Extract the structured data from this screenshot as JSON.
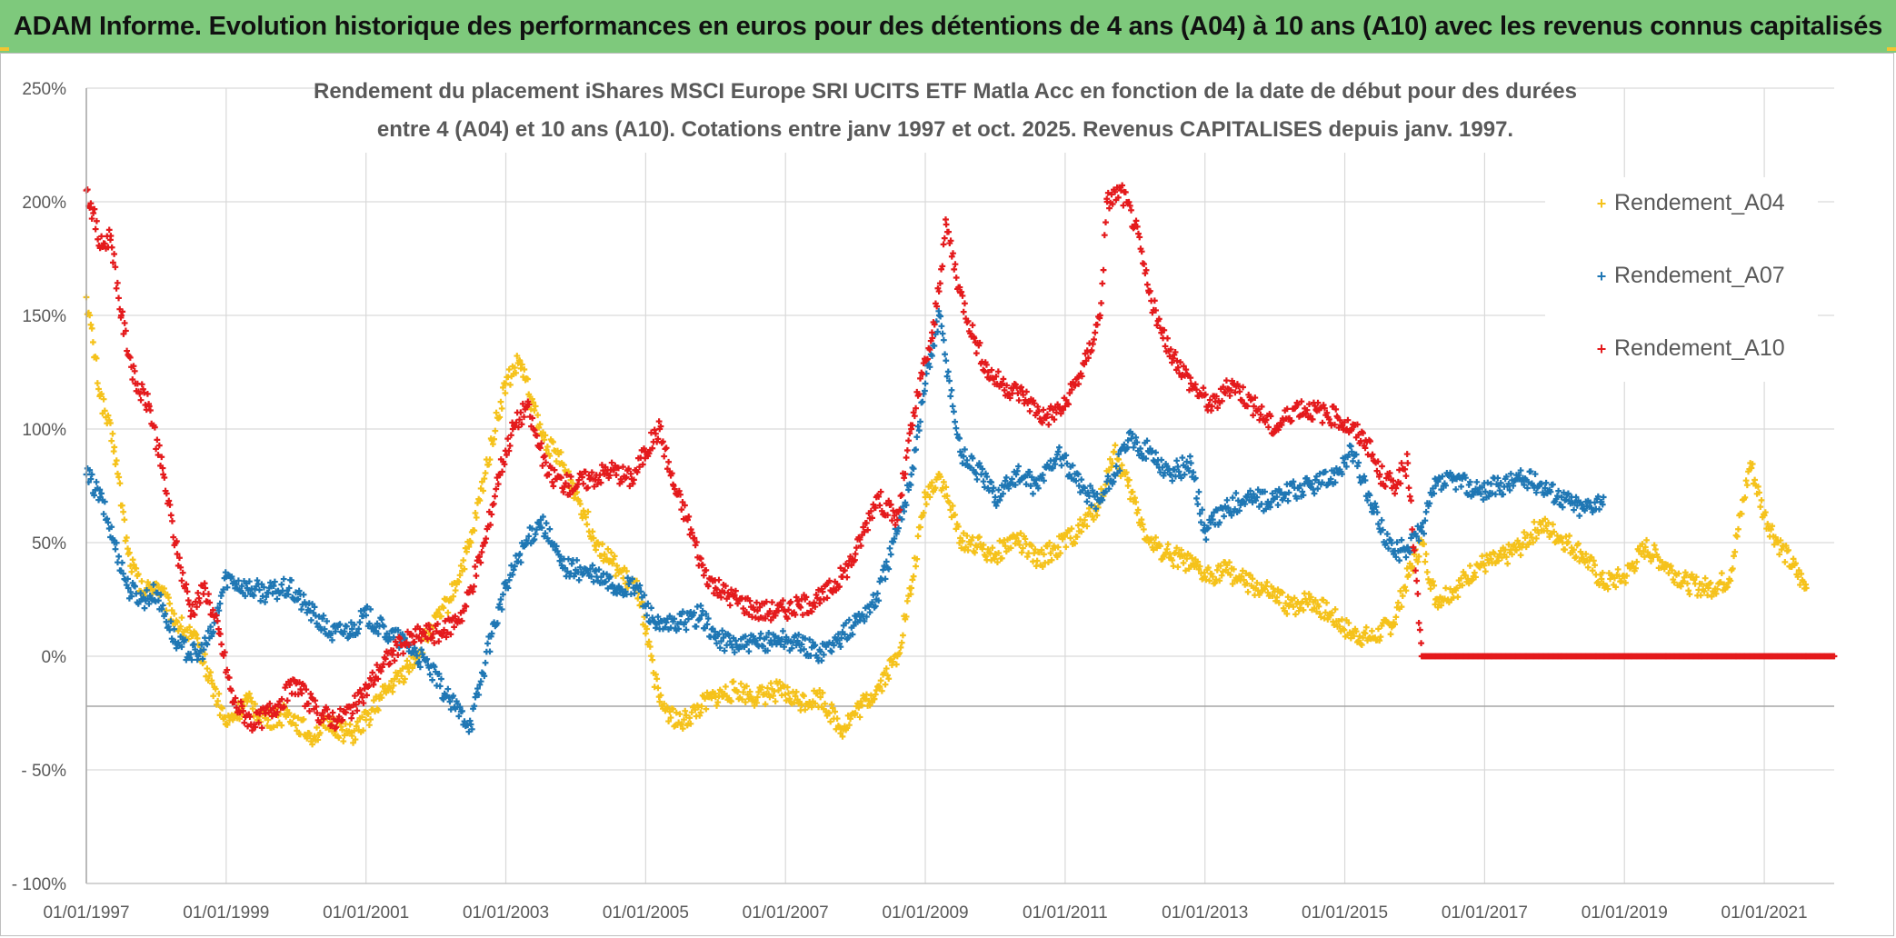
{
  "banner": {
    "title": "ADAM Informe. Evolution historique des performances en euros pour des détentions de 4 ans (A04) à 10 ans (A10) avec les revenus connus capitalisés"
  },
  "colors": {
    "banner_bg": "#7ec97c",
    "accent_corner": "#f2c531",
    "grid": "#d9d9d9",
    "text": "#595959"
  },
  "chart_data": {
    "type": "scatter",
    "title_lines": [
      "Rendement du placement iShares MSCI Europe SRI UCITS ETF Matla Acc en fonction de la date de début pour des durées",
      "entre 4 (A04) et 10 ans (A10). Cotations entre janv 1997 et oct. 2025. Revenus CAPITALISES depuis janv. 1997."
    ],
    "xlabel": "",
    "ylabel": "",
    "ylim": [
      -100,
      250
    ],
    "y_ticks": [
      -100,
      -50,
      0,
      50,
      100,
      150,
      200,
      250
    ],
    "y_tick_labels": [
      "- 100%",
      "- 50%",
      "0%",
      "50%",
      "100%",
      "150%",
      "200%",
      "250%"
    ],
    "xlim": [
      1997.0,
      2022.0
    ],
    "x_ticks": [
      1997,
      1999,
      2001,
      2003,
      2005,
      2007,
      2009,
      2011,
      2013,
      2015,
      2017,
      2019,
      2021
    ],
    "x_tick_labels": [
      "01/01/1997",
      "01/01/1999",
      "01/01/2001",
      "01/01/2003",
      "01/01/2005",
      "01/01/2007",
      "01/01/2009",
      "01/01/2011",
      "01/01/2013",
      "01/01/2015",
      "01/01/2017",
      "01/01/2019",
      "01/01/2021"
    ],
    "extra_hline": -22,
    "legend_position": "top-right",
    "series": [
      {
        "name": "Rendement_A04",
        "color": "#f5c21b",
        "x": [
          1997.0,
          1997.2,
          1997.4,
          1997.6,
          1997.8,
          1998.0,
          1998.3,
          1998.6,
          1998.8,
          1999.0,
          1999.3,
          1999.6,
          1999.9,
          2000.2,
          2000.5,
          2000.8,
          2001.0,
          2001.3,
          2001.6,
          2001.9,
          2002.2,
          2002.5,
          2002.8,
          2003.0,
          2003.2,
          2003.5,
          2003.8,
          2004.0,
          2004.3,
          2004.6,
          2004.9,
          2005.0,
          2005.2,
          2005.5,
          2005.8,
          2006.0,
          2006.3,
          2006.6,
          2006.9,
          2007.2,
          2007.5,
          2007.8,
          2008.0,
          2008.3,
          2008.6,
          2008.8,
          2009.0,
          2009.2,
          2009.5,
          2009.8,
          2010.0,
          2010.3,
          2010.6,
          2010.9,
          2011.2,
          2011.5,
          2011.7,
          2011.9,
          2012.2,
          2012.5,
          2012.8,
          2013.0,
          2013.3,
          2013.6,
          2013.9,
          2014.2,
          2014.5,
          2014.8,
          2015.1,
          2015.4,
          2015.7,
          2015.9,
          2016.1,
          2016.3,
          2016.6,
          2016.9,
          2017.2,
          2017.5,
          2017.8,
          2018.1,
          2018.4,
          2018.7,
          2019.0,
          2019.3,
          2019.6,
          2019.9,
          2020.2,
          2020.5,
          2020.8,
          2021.0,
          2021.2,
          2021.4,
          2021.6
        ],
        "y": [
          158,
          115,
          92,
          45,
          28,
          32,
          15,
          5,
          -12,
          -30,
          -20,
          -28,
          -25,
          -35,
          -30,
          -35,
          -28,
          -15,
          -5,
          10,
          25,
          50,
          95,
          120,
          130,
          98,
          85,
          72,
          50,
          38,
          28,
          10,
          -20,
          -30,
          -22,
          -18,
          -15,
          -18,
          -15,
          -20,
          -18,
          -32,
          -25,
          -15,
          0,
          30,
          70,
          80,
          52,
          48,
          45,
          52,
          42,
          48,
          55,
          68,
          90,
          75,
          50,
          45,
          40,
          35,
          38,
          32,
          28,
          22,
          25,
          18,
          10,
          8,
          15,
          35,
          50,
          25,
          30,
          40,
          42,
          48,
          58,
          52,
          45,
          32,
          35,
          48,
          40,
          32,
          30,
          34,
          85,
          62,
          50,
          40,
          30
        ]
      },
      {
        "name": "Rendement_A07",
        "color": "#1f77b4",
        "x": [
          1997.0,
          1997.2,
          1997.4,
          1997.6,
          1997.8,
          1998.0,
          1998.3,
          1998.6,
          1998.8,
          1999.0,
          1999.3,
          1999.6,
          1999.9,
          2000.2,
          2000.5,
          2000.8,
          2001.0,
          2001.3,
          2001.6,
          2001.9,
          2002.2,
          2002.5,
          2002.8,
          2003.0,
          2003.2,
          2003.5,
          2003.8,
          2004.0,
          2004.3,
          2004.6,
          2004.9,
          2005.0,
          2005.2,
          2005.5,
          2005.8,
          2006.0,
          2006.3,
          2006.6,
          2006.9,
          2007.2,
          2007.5,
          2007.8,
          2008.0,
          2008.3,
          2008.6,
          2008.8,
          2009.0,
          2009.2,
          2009.5,
          2009.8,
          2010.0,
          2010.3,
          2010.6,
          2010.9,
          2011.2,
          2011.5,
          2011.7,
          2011.9,
          2012.2,
          2012.5,
          2012.8,
          2013.0,
          2013.3,
          2013.6,
          2013.9,
          2014.2,
          2014.5,
          2014.8,
          2015.1,
          2015.4,
          2015.7,
          2015.9,
          2016.1,
          2016.3,
          2016.6,
          2016.9,
          2017.2,
          2017.5,
          2017.8,
          2018.1,
          2018.4,
          2018.7
        ],
        "y": [
          80,
          70,
          50,
          30,
          25,
          28,
          5,
          0,
          10,
          35,
          30,
          28,
          30,
          20,
          10,
          12,
          18,
          10,
          5,
          -5,
          -20,
          -30,
          10,
          30,
          45,
          60,
          40,
          38,
          35,
          30,
          30,
          22,
          12,
          15,
          18,
          8,
          5,
          5,
          8,
          5,
          2,
          8,
          15,
          25,
          55,
          80,
          120,
          150,
          90,
          80,
          70,
          80,
          75,
          90,
          75,
          68,
          80,
          95,
          90,
          80,
          85,
          55,
          65,
          70,
          68,
          72,
          75,
          78,
          90,
          65,
          45,
          48,
          55,
          75,
          78,
          72,
          75,
          78,
          76,
          70,
          65,
          70
        ]
      },
      {
        "name": "Rendement_A10",
        "color": "#e41a1c",
        "x": [
          1997.0,
          1997.1,
          1997.2,
          1997.35,
          1997.5,
          1997.7,
          1997.9,
          1998.1,
          1998.3,
          1998.5,
          1998.7,
          1998.9,
          1999.1,
          1999.4,
          1999.7,
          2000.0,
          2000.3,
          2000.6,
          2000.9,
          2001.2,
          2001.5,
          2001.8,
          2002.1,
          2002.4,
          2002.7,
          2002.9,
          2003.1,
          2003.3,
          2003.6,
          2003.9,
          2004.2,
          2004.5,
          2004.8,
          2005.0,
          2005.2,
          2005.4,
          2005.6,
          2005.8,
          2006.0,
          2006.3,
          2006.6,
          2006.9,
          2007.2,
          2007.5,
          2007.8,
          2008.0,
          2008.3,
          2008.6,
          2008.8,
          2009.0,
          2009.1,
          2009.3,
          2009.5,
          2009.7,
          2009.9,
          2010.1,
          2010.4,
          2010.7,
          2011.0,
          2011.3,
          2011.5,
          2011.6,
          2011.8,
          2012.0,
          2012.2,
          2012.4,
          2012.6,
          2012.8,
          2013.1,
          2013.4,
          2013.7,
          2014.0,
          2014.3,
          2014.6,
          2014.9,
          2015.1,
          2015.3,
          2015.5,
          2015.7,
          2015.9,
          2016.1,
          2016.6,
          2017.1,
          2017.6,
          2018.1,
          2018.6,
          2019.1,
          2019.6,
          2020.1,
          2020.6,
          2021.1,
          2021.6,
          2022.0
        ],
        "y": [
          205,
          195,
          180,
          185,
          150,
          120,
          110,
          80,
          45,
          20,
          30,
          10,
          -20,
          -30,
          -22,
          -12,
          -25,
          -28,
          -20,
          -5,
          5,
          10,
          10,
          20,
          50,
          80,
          100,
          110,
          80,
          75,
          78,
          82,
          78,
          90,
          100,
          75,
          60,
          40,
          30,
          25,
          20,
          20,
          22,
          25,
          35,
          45,
          70,
          60,
          100,
          130,
          140,
          190,
          160,
          140,
          125,
          120,
          115,
          105,
          110,
          130,
          150,
          200,
          205,
          190,
          160,
          140,
          130,
          120,
          110,
          120,
          110,
          100,
          110,
          108,
          105,
          100,
          95,
          80,
          75,
          85,
          0,
          0,
          0,
          0,
          0,
          0,
          0,
          0,
          0,
          0,
          0,
          0,
          0
        ]
      }
    ]
  }
}
